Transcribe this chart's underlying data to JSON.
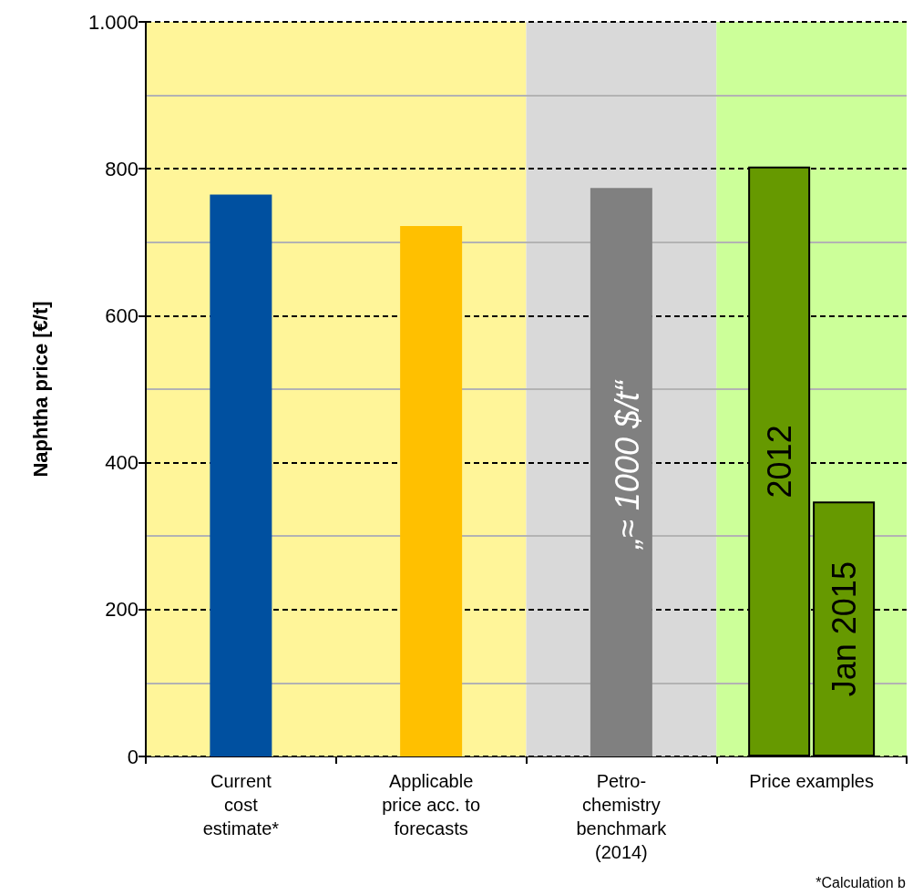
{
  "chart_data": {
    "type": "bar",
    "ylabel": "Naphtha price [€/t]",
    "categories": [
      "Current\ncost\nestimate*",
      "Applicable\nprice acc. to\nforecasts",
      "Petro-\nchemistry\nbenchmark\n(2014)",
      "Price examples"
    ],
    "series": [
      {
        "colors": [
          "#0050a0",
          "#ffc000",
          "#808080",
          null
        ],
        "values": [
          765,
          722,
          774,
          null
        ]
      },
      {
        "name": "2012",
        "color": "#669900",
        "values": [
          null,
          null,
          null,
          803
        ]
      },
      {
        "name": "Jan 2015",
        "color": "#669900",
        "values": [
          null,
          null,
          null,
          347
        ]
      }
    ],
    "ylim": [
      0,
      1000
    ],
    "yticks": [
      0,
      200,
      400,
      600,
      800,
      {
        "value": 1000,
        "label": "1.000"
      }
    ],
    "grid": "y",
    "bands": [
      {
        "axis": "x",
        "from": "Current\ncost\nestimate*",
        "to": "Applicable\nprice acc. to\nforecasts",
        "color": "#fff599"
      },
      {
        "axis": "x",
        "from": "Petro-\nchemistry\nbenchmark\n(2014)",
        "to": "Petro-\nchemistry\nbenchmark\n(2014)",
        "color": "#d9d9d9"
      },
      {
        "axis": "x",
        "from": "Price examples",
        "to": "Price examples",
        "color": "#ccff99"
      }
    ],
    "annotations": [
      "„≈ 1000 $/t“",
      "*Calculation b"
    ]
  }
}
